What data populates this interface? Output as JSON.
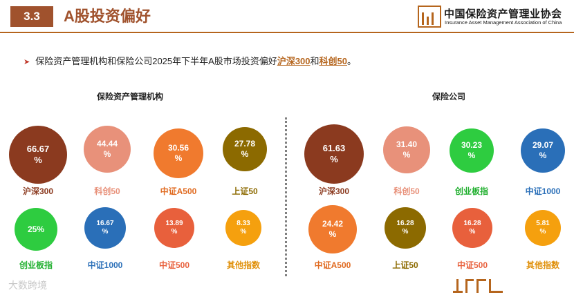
{
  "header": {
    "section_number": "3.3",
    "section_title": "A股投资偏好",
    "logo_cn": "中国保险资产管理业协会",
    "logo_en": "Insurance Asset Management Association of China"
  },
  "bullet": {
    "prefix": "保险资产管理机构和保险公司2025年下半年A股市场投资偏好",
    "highlight1": "沪深300",
    "middle": "和",
    "highlight2": "科创50",
    "suffix": "。"
  },
  "groups": {
    "left_title": "保险资产管理机构",
    "right_title": "保险公司"
  },
  "left_items": [
    {
      "value": "66.67",
      "unit": "%",
      "label": "沪深300",
      "color": "#8b3a1f",
      "label_color": "#8b3a1f"
    },
    {
      "value": "44.44",
      "unit": "%",
      "label": "科创50",
      "color": "#e8917a",
      "label_color": "#e8917a"
    },
    {
      "value": "30.56",
      "unit": "%",
      "label": "中证A500",
      "color": "#f07a2e",
      "label_color": "#e06a20"
    },
    {
      "value": "27.78",
      "unit": "%",
      "label": "上证50",
      "color": "#8c6a00",
      "label_color": "#8c6a00"
    },
    {
      "value": "25%",
      "unit": "",
      "label": "创业板指",
      "color": "#2ecc40",
      "label_color": "#22b030"
    },
    {
      "value": "16.67",
      "unit": "%",
      "label": "中证1000",
      "color": "#2a6fb8",
      "label_color": "#2a6fb8"
    },
    {
      "value": "13.89",
      "unit": "%",
      "label": "中证500",
      "color": "#e8603c",
      "label_color": "#e8603c"
    },
    {
      "value": "8.33",
      "unit": "%",
      "label": "其他指数",
      "color": "#f5a00e",
      "label_color": "#e0900a"
    }
  ],
  "right_items": [
    {
      "value": "61.63",
      "unit": "%",
      "label": "沪深300",
      "color": "#8b3a1f",
      "label_color": "#8b3a1f"
    },
    {
      "value": "31.40",
      "unit": "%",
      "label": "科创50",
      "color": "#e8917a",
      "label_color": "#e8917a"
    },
    {
      "value": "30.23",
      "unit": "%",
      "label": "创业板指",
      "color": "#2ecc40",
      "label_color": "#22b030"
    },
    {
      "value": "29.07",
      "unit": "%",
      "label": "中证1000",
      "color": "#2a6fb8",
      "label_color": "#2a6fb8"
    },
    {
      "value": "24.42",
      "unit": "%",
      "label": "中证A500",
      "color": "#f07a2e",
      "label_color": "#e06a20"
    },
    {
      "value": "16.28",
      "unit": "%",
      "label": "上证50",
      "color": "#8c6a00",
      "label_color": "#8c6a00"
    },
    {
      "value": "16.28",
      "unit": "%",
      "label": "中证500",
      "color": "#e8603c",
      "label_color": "#e8603c"
    },
    {
      "value": "5.81",
      "unit": "%",
      "label": "其他指数",
      "color": "#f5a00e",
      "label_color": "#e0900a"
    }
  ],
  "watermark": "大数跨境"
}
